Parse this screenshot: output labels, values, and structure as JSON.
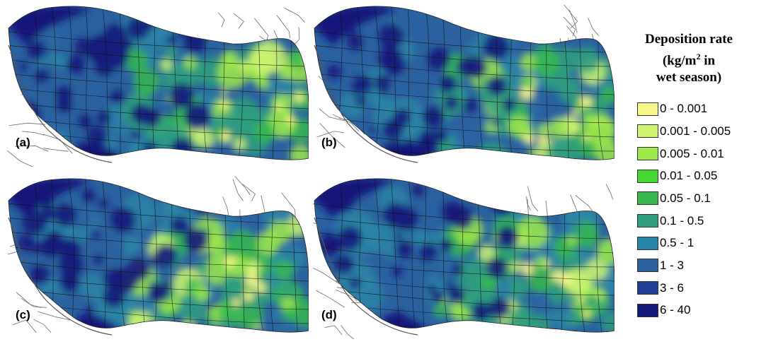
{
  "legend": {
    "title_line1": "Deposition rate",
    "title_line2_pre": "(kg/m",
    "title_line2_sup": "2",
    "title_line2_post": " in",
    "title_line3": "wet season)",
    "classes": [
      {
        "label": "0 - 0.001",
        "color": "#f7f78a"
      },
      {
        "label": "0.001 - 0.005",
        "color": "#cdf570"
      },
      {
        "label": "0.005 - 0.01",
        "color": "#9ee84a"
      },
      {
        "label": "0.01 - 0.05",
        "color": "#45d832"
      },
      {
        "label": "0.05 - 0.1",
        "color": "#37b84f"
      },
      {
        "label": "0.1 - 0.5",
        "color": "#2f9e7f"
      },
      {
        "label": "0.5 - 1",
        "color": "#2a86a6"
      },
      {
        "label": "1 - 3",
        "color": "#2a61a0"
      },
      {
        "label": "3 - 6",
        "color": "#1f3f96"
      },
      {
        "label": "6 - 40",
        "color": "#14197a"
      }
    ]
  },
  "panels": [
    {
      "label": "(a)",
      "variant": 0
    },
    {
      "label": "(b)",
      "variant": 1
    },
    {
      "label": "(c)",
      "variant": 2
    },
    {
      "label": "(d)",
      "variant": 3
    }
  ]
}
